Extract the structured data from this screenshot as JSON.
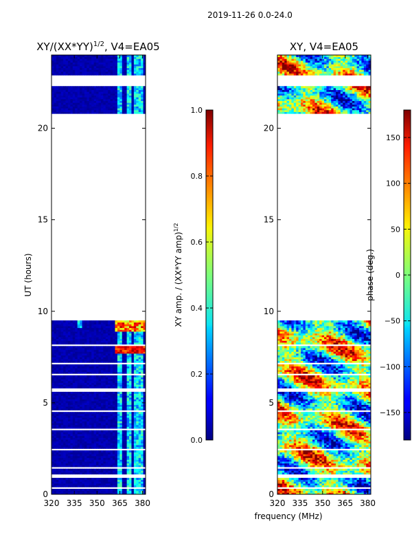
{
  "suptitle": "2019-11-26 0.0-24.0",
  "chart_data": [
    {
      "type": "heatmap",
      "title": "XY/(XX*YY)^1/2, V4=EA05",
      "title_main": "XY/(XX*YY)",
      "title_sup": "1/2",
      "title_tail": ", V4=EA05",
      "xlabel": "",
      "ylabel": "UT (hours)",
      "xlim": [
        320,
        382
      ],
      "ylim": [
        0,
        24
      ],
      "xticks": [
        "320",
        "335",
        "350",
        "365",
        "380"
      ],
      "xtick_values": [
        320,
        335,
        350,
        365,
        380
      ],
      "yticks": [
        "0",
        "5",
        "10",
        "15",
        "20"
      ],
      "ytick_values": [
        0,
        5,
        10,
        15,
        20
      ],
      "data_ranges_hours": [
        [
          0,
          9.5
        ],
        [
          20.8,
          24
        ]
      ],
      "colorbar": {
        "label": "XY amp. / (XX*YY amp)^1/2",
        "label_main": "XY amp. / (XX*YY amp)",
        "label_sup": "1/2",
        "ticks": [
          "0.0",
          "0.2",
          "0.4",
          "0.6",
          "0.8",
          "1.0"
        ],
        "tick_values": [
          0.0,
          0.2,
          0.4,
          0.6,
          0.8,
          1.0
        ],
        "range": [
          0,
          1
        ]
      }
    },
    {
      "type": "heatmap",
      "title": "XY, V4=EA05",
      "xlabel": "frequency (MHz)",
      "ylabel": "",
      "xlim": [
        320,
        382
      ],
      "ylim": [
        0,
        24
      ],
      "xticks": [
        "320",
        "335",
        "350",
        "365",
        "380"
      ],
      "xtick_values": [
        320,
        335,
        350,
        365,
        380
      ],
      "yticks": [
        "0",
        "5",
        "10",
        "15",
        "20"
      ],
      "ytick_values": [
        0,
        5,
        10,
        15,
        20
      ],
      "data_ranges_hours": [
        [
          0,
          9.5
        ],
        [
          20.8,
          24
        ]
      ],
      "colorbar": {
        "label": "phase (deg.)",
        "ticks": [
          "−150",
          "−100",
          "−50",
          "0",
          "50",
          "100",
          "150"
        ],
        "tick_values": [
          -150,
          -100,
          -50,
          0,
          50,
          100,
          150
        ],
        "range": [
          -180,
          180
        ]
      }
    }
  ]
}
